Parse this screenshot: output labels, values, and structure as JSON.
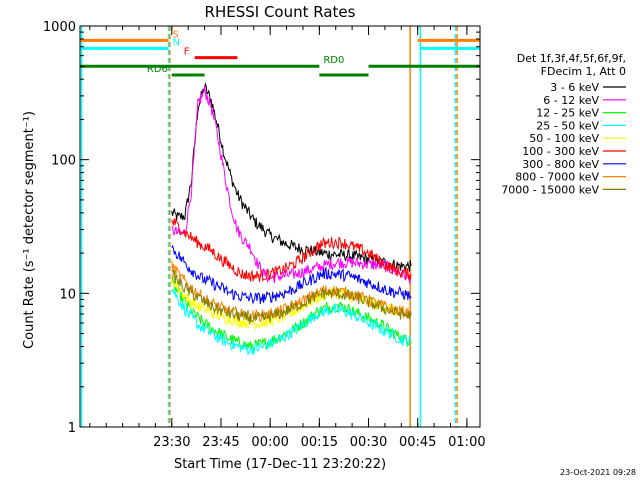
{
  "chart_data": {
    "type": "line",
    "title": "RHESSI Count Rates",
    "xlabel": "Start Time (17-Dec-11 23:20:22)",
    "ylabel": "Count Rate (s⁻¹ detector segment⁻¹)",
    "y_scale": "log",
    "ylim": [
      1,
      1000
    ],
    "xlim_minutes": [
      -58,
      64
    ],
    "x_ticks": [
      {
        "label": "23:30",
        "min": -30
      },
      {
        "label": "23:45",
        "min": -15
      },
      {
        "label": "00:00",
        "min": 0
      },
      {
        "label": "00:15",
        "min": 15
      },
      {
        "label": "00:30",
        "min": 30
      },
      {
        "label": "00:45",
        "min": 45
      },
      {
        "label": "01:00",
        "min": 60
      }
    ],
    "y_ticks": [
      {
        "label": "1",
        "v": 1
      },
      {
        "label": "10",
        "v": 10
      },
      {
        "label": "100",
        "v": 100
      },
      {
        "label": "1000",
        "v": 1000
      }
    ],
    "legend_header": [
      "Det 1f,3f,4f,5f,6f,9f,",
      "FDecim 1, Att 0"
    ],
    "legend_placement": "right",
    "series": [
      {
        "name": "3 - 6 keV",
        "color": "#000000",
        "points": [
          [
            -30,
            40
          ],
          [
            -28,
            37
          ],
          [
            -26,
            38
          ],
          [
            -24,
            70
          ],
          [
            -22,
            250
          ],
          [
            -20,
            350
          ],
          [
            -18,
            280
          ],
          [
            -16,
            180
          ],
          [
            -14,
            110
          ],
          [
            -12,
            75
          ],
          [
            -10,
            55
          ],
          [
            -8,
            45
          ],
          [
            -5,
            35
          ],
          [
            -2,
            30
          ],
          [
            0,
            27
          ],
          [
            4,
            24
          ],
          [
            8,
            22
          ],
          [
            12,
            21
          ],
          [
            16,
            20
          ],
          [
            20,
            19.5
          ],
          [
            25,
            19
          ],
          [
            30,
            18
          ],
          [
            35,
            17
          ],
          [
            40,
            16
          ],
          [
            43,
            16
          ]
        ]
      },
      {
        "name": "6 - 12 keV",
        "color": "#ff00ff",
        "points": [
          [
            -30,
            30
          ],
          [
            -28,
            28
          ],
          [
            -26,
            28
          ],
          [
            -24,
            60
          ],
          [
            -22,
            260
          ],
          [
            -20,
            330
          ],
          [
            -18,
            250
          ],
          [
            -16,
            150
          ],
          [
            -14,
            80
          ],
          [
            -12,
            45
          ],
          [
            -10,
            30
          ],
          [
            -8,
            25
          ],
          [
            -6,
            22
          ],
          [
            -4,
            17
          ],
          [
            -2,
            14
          ],
          [
            0,
            13
          ],
          [
            4,
            13.5
          ],
          [
            8,
            14
          ],
          [
            12,
            15
          ],
          [
            16,
            16
          ],
          [
            20,
            17
          ],
          [
            25,
            17
          ],
          [
            30,
            16.5
          ],
          [
            35,
            16
          ],
          [
            40,
            14
          ],
          [
            43,
            13
          ]
        ]
      },
      {
        "name": "12 - 25 keV",
        "color": "#00ff00",
        "points": [
          [
            -30,
            12
          ],
          [
            -28,
            10
          ],
          [
            -25,
            8
          ],
          [
            -22,
            6.5
          ],
          [
            -18,
            5.5
          ],
          [
            -14,
            4.8
          ],
          [
            -10,
            4.3
          ],
          [
            -6,
            4
          ],
          [
            -2,
            4.2
          ],
          [
            2,
            4.6
          ],
          [
            6,
            5.2
          ],
          [
            10,
            6
          ],
          [
            14,
            7.2
          ],
          [
            18,
            8
          ],
          [
            22,
            8
          ],
          [
            26,
            7.2
          ],
          [
            30,
            6.5
          ],
          [
            34,
            5.8
          ],
          [
            38,
            5
          ],
          [
            41,
            4.5
          ],
          [
            43,
            4.5
          ]
        ]
      },
      {
        "name": "25 - 50 keV",
        "color": "#00ffff",
        "points": [
          [
            -30,
            11
          ],
          [
            -28,
            9
          ],
          [
            -25,
            7
          ],
          [
            -22,
            5.8
          ],
          [
            -18,
            5
          ],
          [
            -14,
            4.4
          ],
          [
            -10,
            4
          ],
          [
            -6,
            3.8
          ],
          [
            -2,
            4
          ],
          [
            2,
            4.4
          ],
          [
            6,
            5
          ],
          [
            10,
            5.8
          ],
          [
            14,
            7
          ],
          [
            18,
            7.5
          ],
          [
            22,
            7.5
          ],
          [
            26,
            6.8
          ],
          [
            30,
            6
          ],
          [
            34,
            5.4
          ],
          [
            38,
            4.8
          ],
          [
            41,
            4.4
          ],
          [
            43,
            4.4
          ]
        ]
      },
      {
        "name": "50 - 100 keV",
        "color": "#ffff00",
        "points": [
          [
            -30,
            13
          ],
          [
            -28,
            11
          ],
          [
            -25,
            9
          ],
          [
            -22,
            8
          ],
          [
            -18,
            7.2
          ],
          [
            -14,
            6.6
          ],
          [
            -10,
            6.2
          ],
          [
            -6,
            6
          ],
          [
            -2,
            6
          ],
          [
            2,
            6.4
          ],
          [
            6,
            7
          ],
          [
            10,
            8
          ],
          [
            14,
            9.2
          ],
          [
            18,
            10
          ],
          [
            22,
            10
          ],
          [
            26,
            9.4
          ],
          [
            30,
            8.6
          ],
          [
            34,
            8
          ],
          [
            38,
            7.4
          ],
          [
            41,
            7
          ],
          [
            43,
            7
          ]
        ]
      },
      {
        "name": "100 - 300 keV",
        "color": "#ff0000",
        "points": [
          [
            -30,
            35
          ],
          [
            -27,
            30
          ],
          [
            -24,
            26
          ],
          [
            -21,
            23
          ],
          [
            -18,
            21
          ],
          [
            -15,
            18
          ],
          [
            -12,
            16
          ],
          [
            -9,
            14
          ],
          [
            -6,
            13.5
          ],
          [
            -3,
            13.5
          ],
          [
            0,
            14
          ],
          [
            4,
            15
          ],
          [
            8,
            17
          ],
          [
            12,
            20
          ],
          [
            15,
            23
          ],
          [
            18,
            24
          ],
          [
            22,
            24
          ],
          [
            26,
            22
          ],
          [
            30,
            20
          ],
          [
            34,
            17
          ],
          [
            38,
            15
          ],
          [
            41,
            14
          ],
          [
            43,
            14
          ]
        ]
      },
      {
        "name": "300 - 800 keV",
        "color": "#0000ff",
        "points": [
          [
            -30,
            22
          ],
          [
            -27,
            18
          ],
          [
            -24,
            15
          ],
          [
            -21,
            13
          ],
          [
            -18,
            12
          ],
          [
            -15,
            11
          ],
          [
            -12,
            10
          ],
          [
            -9,
            9.5
          ],
          [
            -6,
            9.2
          ],
          [
            -3,
            9.2
          ],
          [
            0,
            9.4
          ],
          [
            4,
            10
          ],
          [
            8,
            11
          ],
          [
            12,
            12.5
          ],
          [
            16,
            14
          ],
          [
            20,
            14
          ],
          [
            24,
            13.5
          ],
          [
            28,
            12.5
          ],
          [
            32,
            11.5
          ],
          [
            36,
            10.5
          ],
          [
            40,
            10
          ],
          [
            43,
            9.5
          ]
        ]
      },
      {
        "name": "800 - 7000 keV",
        "color": "#ff8000",
        "points": [
          [
            -30,
            16
          ],
          [
            -27,
            13
          ],
          [
            -24,
            11
          ],
          [
            -21,
            9.5
          ],
          [
            -18,
            8.5
          ],
          [
            -15,
            7.8
          ],
          [
            -12,
            7.3
          ],
          [
            -9,
            7
          ],
          [
            -6,
            6.8
          ],
          [
            -3,
            6.8
          ],
          [
            0,
            7
          ],
          [
            4,
            7.5
          ],
          [
            8,
            8.3
          ],
          [
            12,
            9.3
          ],
          [
            16,
            10.5
          ],
          [
            20,
            10.5
          ],
          [
            24,
            10
          ],
          [
            28,
            9.3
          ],
          [
            32,
            8.5
          ],
          [
            36,
            7.8
          ],
          [
            40,
            7.3
          ],
          [
            43,
            7
          ]
        ]
      },
      {
        "name": "7000 - 15000 keV",
        "color": "#808000",
        "points": [
          [
            -30,
            14
          ],
          [
            -27,
            11.5
          ],
          [
            -24,
            10
          ],
          [
            -21,
            9
          ],
          [
            -18,
            8
          ],
          [
            -15,
            7.4
          ],
          [
            -12,
            7
          ],
          [
            -9,
            6.7
          ],
          [
            -6,
            6.5
          ],
          [
            -3,
            6.5
          ],
          [
            0,
            6.7
          ],
          [
            4,
            7.2
          ],
          [
            8,
            8
          ],
          [
            12,
            9
          ],
          [
            16,
            10
          ],
          [
            20,
            10
          ],
          [
            24,
            9.6
          ],
          [
            28,
            9
          ],
          [
            32,
            8.2
          ],
          [
            36,
            7.5
          ],
          [
            40,
            7
          ],
          [
            43,
            6.8
          ]
        ]
      }
    ],
    "annotations": [
      {
        "label": "S",
        "color": "#ff8000",
        "y": 780,
        "segments": [
          [
            -58,
            -31
          ],
          [
            45,
            64
          ]
        ]
      },
      {
        "label": "N",
        "color": "#00ffff",
        "y": 680,
        "segments": [
          [
            -58,
            -31
          ],
          [
            46,
            64
          ]
        ]
      },
      {
        "label": "F",
        "color": "#ff0000",
        "y": 580,
        "segments": [
          [
            -23,
            -10
          ]
        ]
      },
      {
        "label": "RD0",
        "color": "#008000",
        "y": 500,
        "segments": [
          [
            -58,
            15
          ],
          [
            30,
            64
          ]
        ]
      },
      {
        "label": "RD6",
        "color": "#008000",
        "y": 430,
        "segments": [
          [
            -30,
            -20
          ],
          [
            15,
            30
          ]
        ]
      }
    ],
    "vertical_lines": [
      {
        "min": -57.5,
        "color": "#00ffff",
        "dashed": false
      },
      {
        "min": -31,
        "color": "#00ffff",
        "dashed": true
      },
      {
        "min": -30.6,
        "color": "#ff8000",
        "dashed": true
      },
      {
        "min": 42.7,
        "color": "#ff8000",
        "dashed": false
      },
      {
        "min": 45.8,
        "color": "#00ffff",
        "dashed": false
      },
      {
        "min": 56.5,
        "color": "#00ffff",
        "dashed": true
      },
      {
        "min": 57,
        "color": "#ff8000",
        "dashed": true
      }
    ]
  },
  "footer": {
    "timestamp": "23-Oct-2021 09:28"
  }
}
